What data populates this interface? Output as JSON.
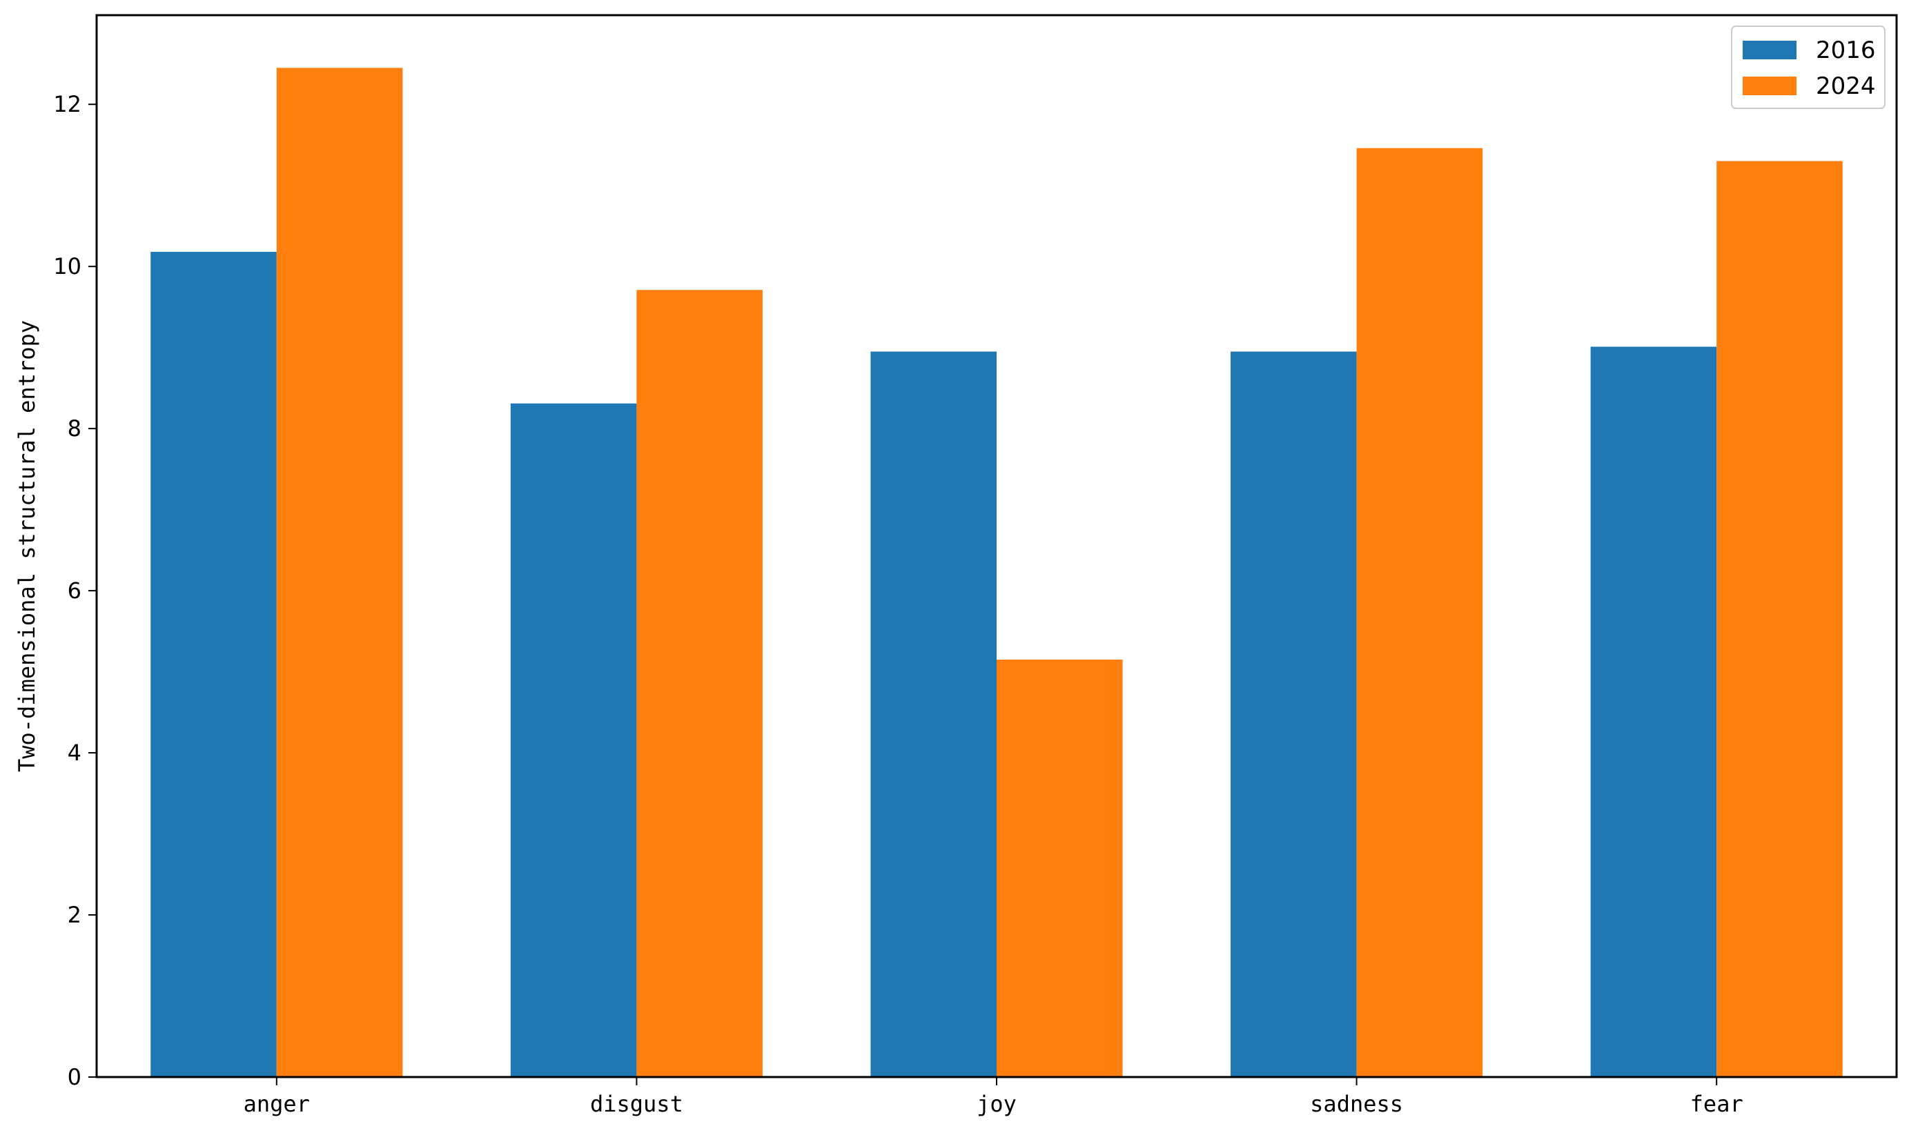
{
  "chart_data": {
    "type": "bar",
    "title": "",
    "xlabel": "",
    "ylabel": "Two-dimensional structural entropy",
    "categories": [
      "anger",
      "disgust",
      "joy",
      "sadness",
      "fear"
    ],
    "series": [
      {
        "name": "2016",
        "color": "#1f77b4",
        "values": [
          10.18,
          8.31,
          8.95,
          8.95,
          9.01
        ]
      },
      {
        "name": "2024",
        "color": "#ff7f0e",
        "values": [
          12.45,
          9.71,
          5.15,
          11.46,
          11.3
        ]
      }
    ],
    "ylim": [
      0,
      13.1
    ],
    "yticks": [
      "0",
      "2",
      "4",
      "6",
      "8",
      "10",
      "12"
    ],
    "legend_position": "top-right",
    "grid": false
  }
}
